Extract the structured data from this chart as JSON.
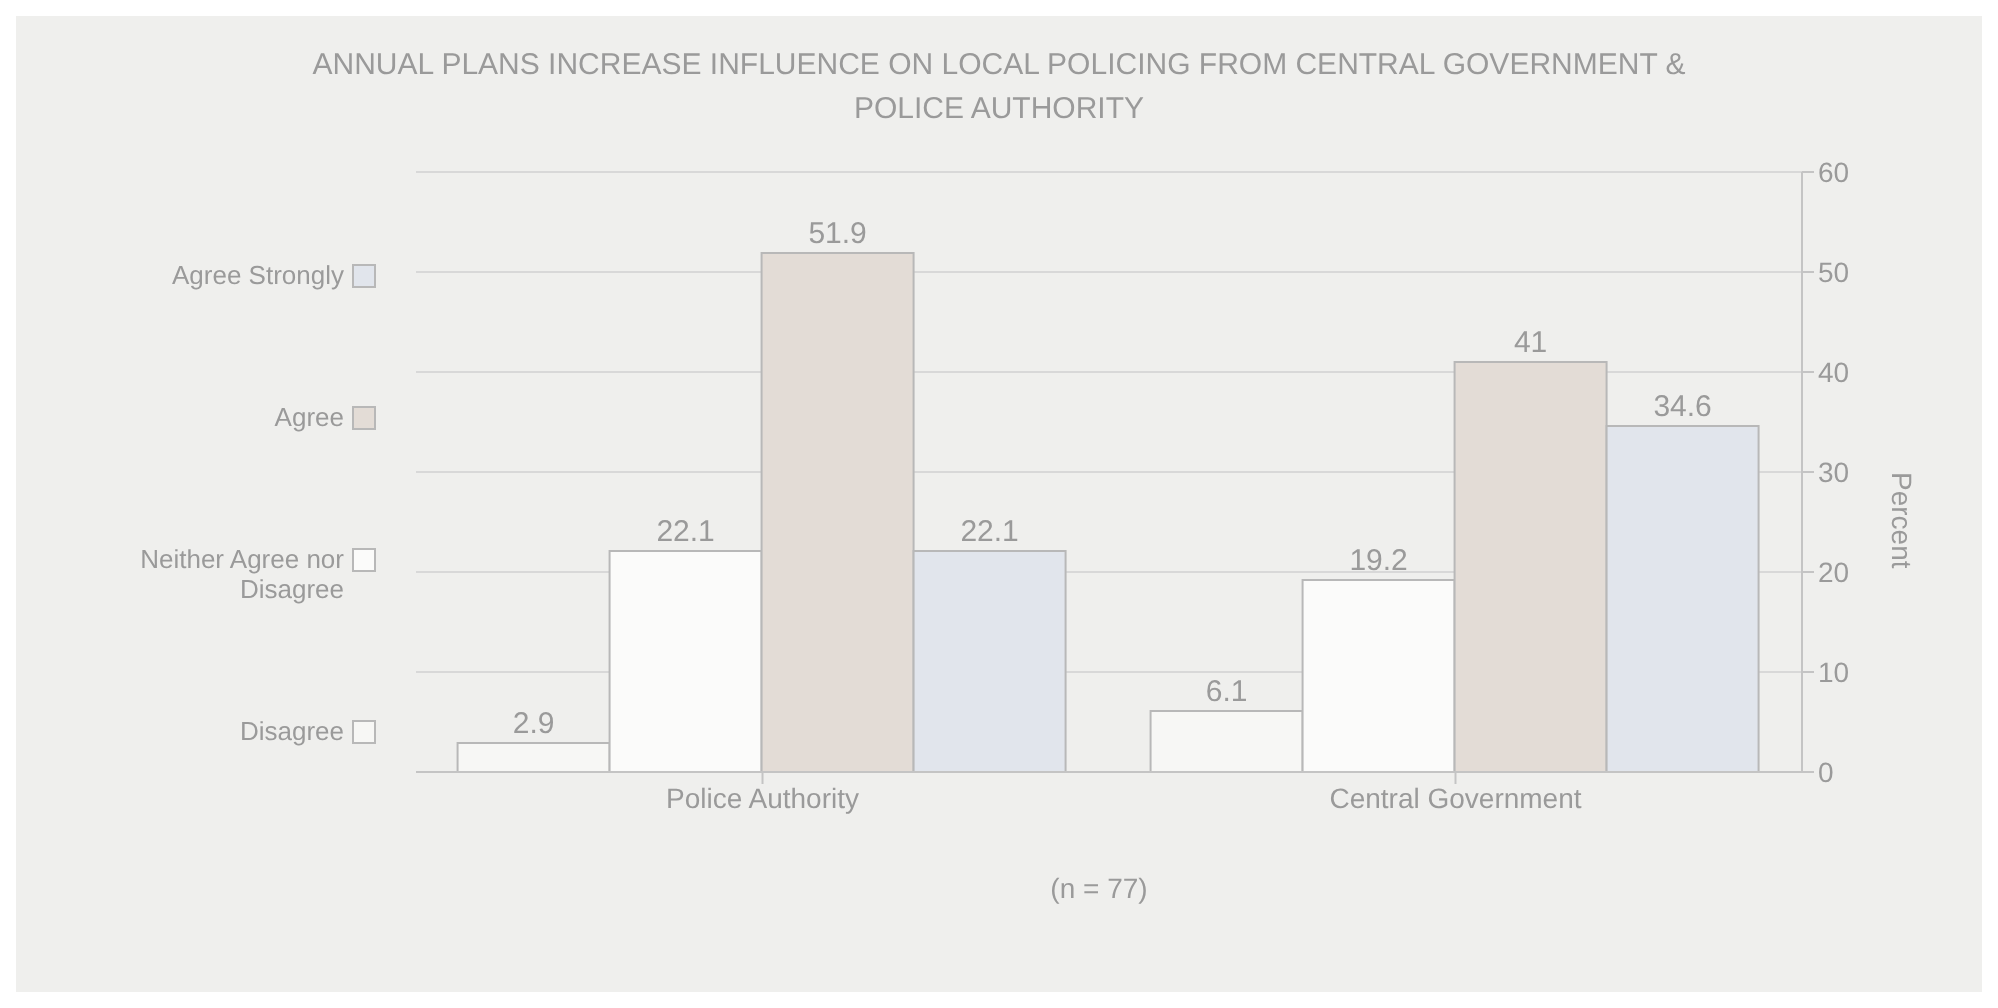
{
  "chart_data": {
    "type": "bar",
    "title": "ANNUAL PLANS INCREASE INFLUENCE ON LOCAL POLICING FROM CENTRAL GOVERNMENT & POLICE AUTHORITY",
    "ylabel": "Percent",
    "categories": [
      "Police Authority",
      "Central Government"
    ],
    "series": [
      {
        "name": "Disagree",
        "color": "#f7f7f5",
        "values": [
          2.9,
          6.1
        ]
      },
      {
        "name": "Neither Agree nor Disagree",
        "color": "#fbfbfa",
        "values": [
          22.1,
          19.2
        ]
      },
      {
        "name": "Agree",
        "color": "#e3dcd6",
        "values": [
          51.9,
          41
        ]
      },
      {
        "name": "Agree Strongly",
        "color": "#e1e5ec",
        "values": [
          22.1,
          34.6
        ]
      }
    ],
    "ylim": [
      0,
      60
    ],
    "yticks": [
      0,
      10,
      20,
      30,
      40,
      50,
      60
    ],
    "grid": "y",
    "legend": "left",
    "data_labels": true,
    "annotations": [
      "(n = 77)"
    ]
  }
}
